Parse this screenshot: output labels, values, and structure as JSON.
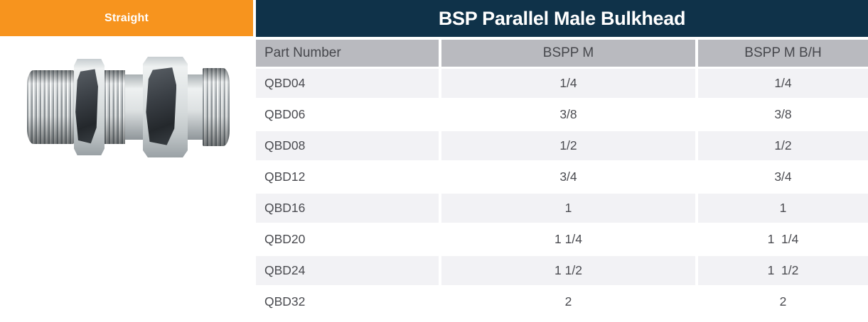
{
  "category_banner": {
    "label": "Straight",
    "bg_color": "#F7941E",
    "text_color": "#FFFFFF"
  },
  "title_bar": {
    "title": "BSP Parallel Male Bulkhead",
    "bg_color": "#0F3249",
    "text_color": "#FFFFFF"
  },
  "product_image": {
    "description": "steel BSP parallel male bulkhead fitting, two threaded male ends with locknut and bulkhead hex"
  },
  "table": {
    "header_bg": "#B9BABF",
    "alt_row_bg": "#F2F2F5",
    "text_color": "#4A4B50",
    "columns": [
      "Part Number",
      "BSPP M",
      "BSPP M B/H"
    ],
    "rows": [
      {
        "part": "QBD04",
        "bspp_m": "1/4",
        "bspp_m_bh": "1/4"
      },
      {
        "part": "QBD06",
        "bspp_m": "3/8",
        "bspp_m_bh": "3/8"
      },
      {
        "part": "QBD08",
        "bspp_m": "1/2",
        "bspp_m_bh": "1/2"
      },
      {
        "part": "QBD12",
        "bspp_m": "3/4",
        "bspp_m_bh": "3/4"
      },
      {
        "part": "QBD16",
        "bspp_m": "1",
        "bspp_m_bh": "1"
      },
      {
        "part": "QBD20",
        "bspp_m": "1 1/4",
        "bspp_m_bh": "1  1/4"
      },
      {
        "part": "QBD24",
        "bspp_m": "1 1/2",
        "bspp_m_bh": "1  1/2"
      },
      {
        "part": "QBD32",
        "bspp_m": "2",
        "bspp_m_bh": "2"
      }
    ]
  }
}
